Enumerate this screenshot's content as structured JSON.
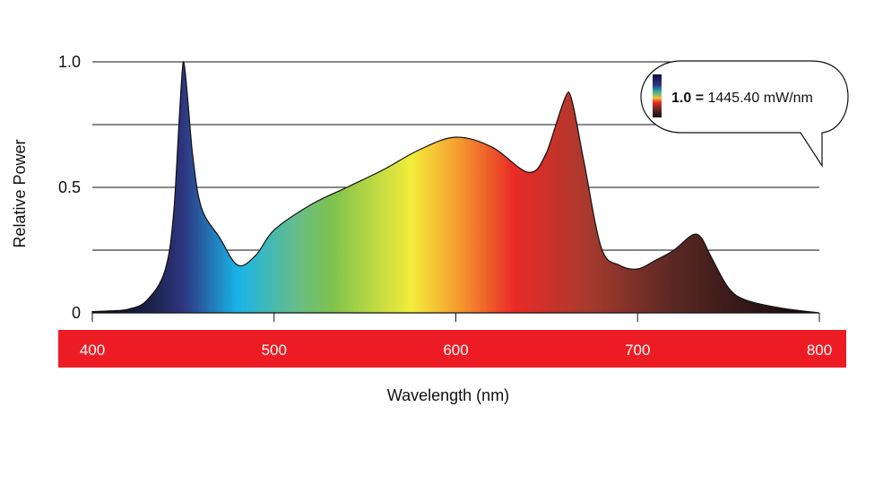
{
  "chart_data": {
    "type": "area",
    "xlabel": "Wavelength (nm)",
    "ylabel": "Relative Power",
    "xlim": [
      400,
      800
    ],
    "ylim": [
      0,
      1.0
    ],
    "x_ticks": [
      "400",
      "500",
      "600",
      "700",
      "800"
    ],
    "y_ticks": [
      {
        "value": 0,
        "label": "0"
      },
      {
        "value": 0.5,
        "label": "0.5"
      },
      {
        "value": 1.0,
        "label": "1.0"
      }
    ],
    "gridlines_y": [
      0.25,
      0.5,
      0.75,
      1.0
    ],
    "grid": true,
    "x_axis_bar_color": "#ed1c24",
    "fill": "wavelength spectrum gradient",
    "legend": {
      "scale_value": "1.0 =",
      "scale_text": "1445.40 mW/nm",
      "placement": "top-right"
    },
    "x": [
      400,
      410,
      420,
      430,
      440,
      445,
      450,
      455,
      460,
      470,
      480,
      490,
      500,
      520,
      540,
      560,
      580,
      600,
      620,
      640,
      650,
      662,
      670,
      680,
      690,
      700,
      710,
      720,
      730,
      735,
      740,
      750,
      760,
      780,
      800
    ],
    "y": [
      0.005,
      0.008,
      0.015,
      0.05,
      0.17,
      0.42,
      1.0,
      0.64,
      0.42,
      0.3,
      0.19,
      0.23,
      0.33,
      0.43,
      0.5,
      0.57,
      0.65,
      0.7,
      0.66,
      0.56,
      0.64,
      0.88,
      0.62,
      0.26,
      0.19,
      0.175,
      0.21,
      0.25,
      0.31,
      0.3,
      0.23,
      0.1,
      0.05,
      0.018,
      0.0
    ]
  }
}
